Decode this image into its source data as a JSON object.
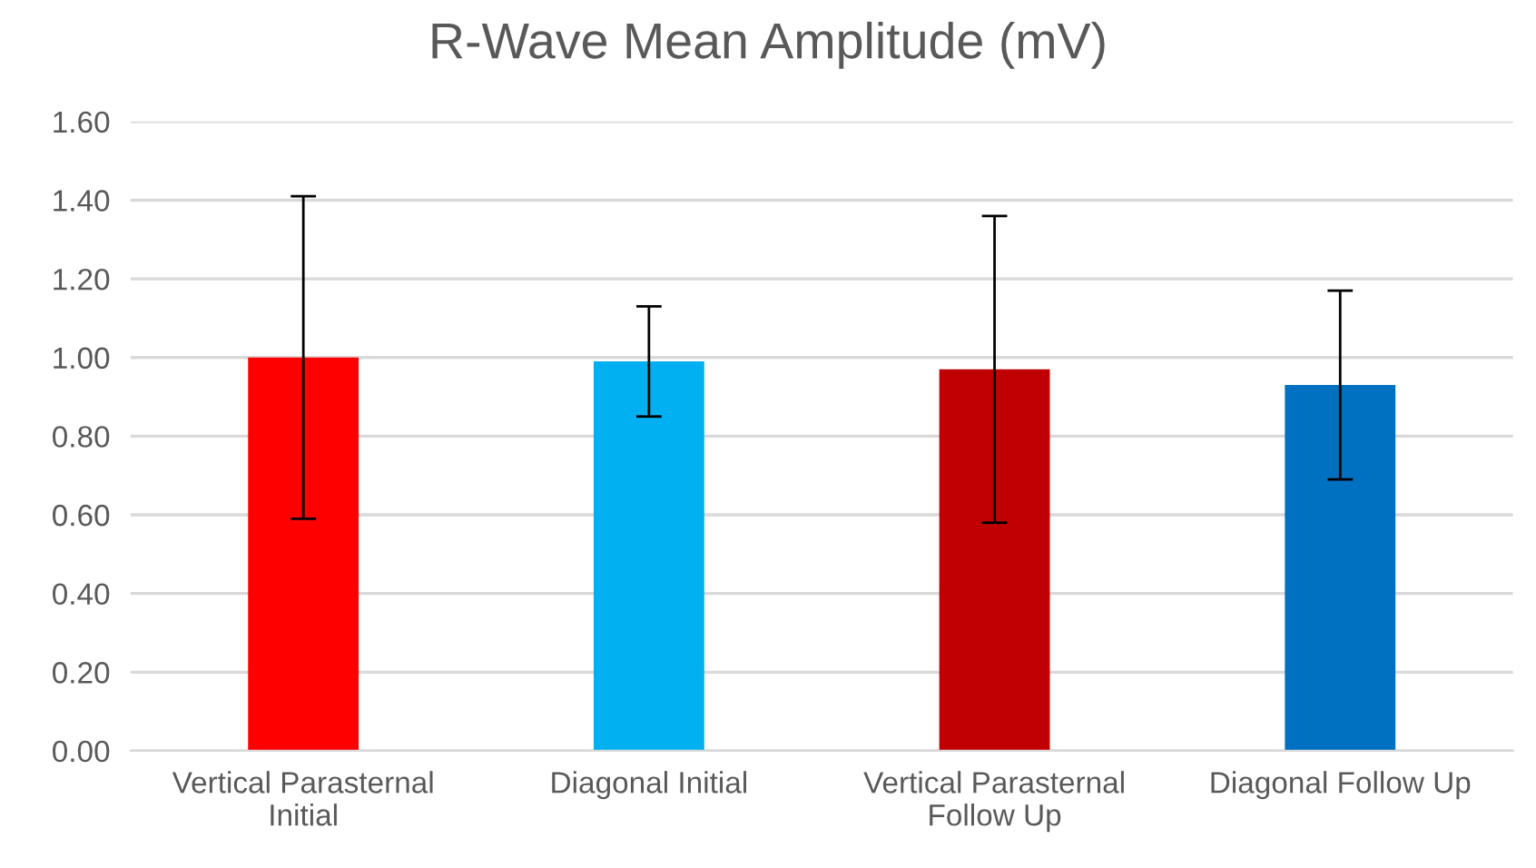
{
  "chart_data": {
    "type": "bar",
    "title": "R-Wave Mean Amplitude (mV)",
    "categories": [
      "Vertical Parasternal\nInitial",
      "Diagonal Initial",
      "Vertical Parasternal\nFollow Up",
      "Diagonal Follow Up"
    ],
    "values": [
      1.0,
      0.99,
      0.97,
      0.93
    ],
    "errors": [
      0.41,
      0.14,
      0.39,
      0.24
    ],
    "colors": [
      "#ff0000",
      "#00b0f0",
      "#c00000",
      "#0070c0"
    ],
    "ylim": [
      0,
      1.6
    ],
    "yticks": [
      {
        "value": 0,
        "label": "0.00"
      },
      {
        "value": 0.2,
        "label": "0.20"
      },
      {
        "value": 0.4,
        "label": "0.40"
      },
      {
        "value": 0.6,
        "label": "0.60"
      },
      {
        "value": 0.8,
        "label": "0.80"
      },
      {
        "value": 1.0,
        "label": "1.00"
      },
      {
        "value": 1.2,
        "label": "1.20"
      },
      {
        "value": 1.4,
        "label": "1.40"
      },
      {
        "value": 1.6,
        "label": "1.60"
      }
    ],
    "grid": "y"
  }
}
